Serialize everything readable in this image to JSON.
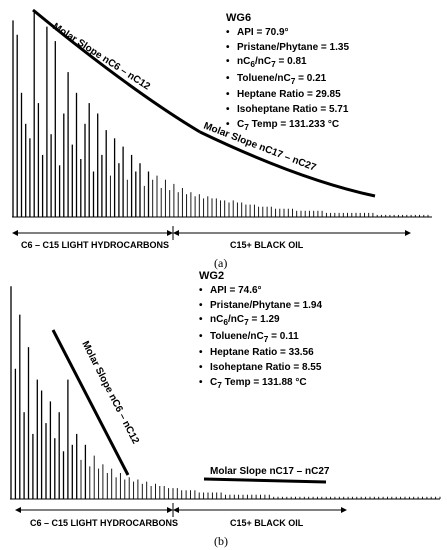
{
  "panels": [
    {
      "id": "a",
      "caption": "(a)",
      "well": "WG6",
      "params": [
        {
          "label": "API = 70.9°"
        },
        {
          "label": "Pristane/Phytane = 1.35"
        },
        {
          "label": "nC",
          "sub": "6",
          "mid": "/nC",
          "sub2": "7",
          "tail": " = 0.81"
        },
        {
          "label": "Toluene/nC",
          "sub": "7",
          "tail": " = 0.21"
        },
        {
          "label": "Heptane Ratio = 29.85"
        },
        {
          "label": "Isoheptane Ratio = 5.71"
        },
        {
          "label": "C",
          "sub": "7",
          "tail": " Temp = 131.233 °C"
        }
      ],
      "slope_labels": [
        "Molar Slope nC6 – nC12",
        "Molar Slope nC17 – nC27"
      ],
      "range_labels": [
        "C6 – C15 LIGHT HYDROCARBONS",
        "C15+ BLACK OIL"
      ]
    },
    {
      "id": "b",
      "caption": "(b)",
      "well": "WG2",
      "params": [
        {
          "label": "API = 74.6°"
        },
        {
          "label": "Pristane/Phytane = 1.94"
        },
        {
          "label": "nC",
          "sub": "6",
          "mid": "/nC",
          "sub2": "7",
          "tail": " = 1.29"
        },
        {
          "label": "Toluene/nC",
          "sub": "7",
          "tail": " = 0.11"
        },
        {
          "label": "Heptane Ratio = 33.56"
        },
        {
          "label": "Isoheptane Ratio = 8.55"
        },
        {
          "label": "C",
          "sub": "7",
          "tail": " Temp = 131.88 °C"
        }
      ],
      "slope_labels": [
        "Molar Slope nC6 – nC12",
        "Molar Slope nC17 – nC27"
      ],
      "range_labels": [
        "C6 – C15 LIGHT HYDROCARBONS",
        "C15+ BLACK OIL"
      ]
    }
  ],
  "chart_data": [
    {
      "type": "bar",
      "panel": "a",
      "title": "",
      "xlabel": "",
      "ylabel": "",
      "note": "Gas chromatogram of whole oil, relative peak heights (0–100).",
      "x": [
        2,
        3,
        4,
        5,
        6,
        7,
        8,
        9,
        10,
        11,
        12,
        13,
        14,
        15,
        16,
        17,
        18,
        19,
        20,
        21,
        22,
        23,
        24,
        25,
        26,
        27,
        28,
        29,
        30,
        31,
        32,
        33,
        34,
        35,
        36,
        37,
        38,
        39,
        40,
        41,
        42,
        43,
        44,
        45,
        46,
        47,
        48,
        49,
        50,
        51,
        52,
        53,
        54,
        55,
        56,
        57,
        58,
        59,
        60,
        61,
        62,
        63,
        64,
        65,
        66,
        67,
        68,
        69,
        70,
        71,
        72,
        73,
        74,
        75,
        76,
        77,
        78,
        79,
        80,
        81,
        82,
        83,
        84,
        85,
        86,
        87,
        88,
        89,
        90,
        91,
        92,
        93,
        94,
        95,
        96,
        97,
        98,
        99,
        100
      ],
      "values": [
        95,
        88,
        60,
        45,
        38,
        99,
        55,
        30,
        92,
        40,
        85,
        25,
        50,
        70,
        35,
        60,
        28,
        45,
        55,
        22,
        50,
        30,
        42,
        20,
        38,
        26,
        34,
        18,
        30,
        22,
        26,
        15,
        22,
        18,
        20,
        14,
        18,
        13,
        16,
        12,
        14,
        11,
        12,
        10,
        11,
        9,
        10,
        9,
        9,
        8,
        8,
        7,
        8,
        7,
        7,
        6,
        6,
        6,
        5,
        5,
        5,
        5,
        4,
        4,
        4,
        4,
        4,
        3,
        3,
        3,
        3,
        3,
        3,
        3,
        2,
        2,
        2,
        2,
        2,
        2,
        2,
        2,
        2,
        2,
        2,
        2,
        1,
        1,
        1,
        1,
        1,
        1,
        1,
        1,
        1,
        1,
        1,
        1,
        1
      ],
      "ylim": [
        0,
        100
      ]
    },
    {
      "type": "bar",
      "panel": "b",
      "title": "",
      "xlabel": "",
      "ylabel": "",
      "note": "Gas chromatogram of whole oil, relative peak heights (0–100).",
      "x": [
        2,
        3,
        4,
        5,
        6,
        7,
        8,
        9,
        10,
        11,
        12,
        13,
        14,
        15,
        16,
        17,
        18,
        19,
        20,
        21,
        22,
        23,
        24,
        25,
        26,
        27,
        28,
        29,
        30,
        31,
        32,
        33,
        34,
        35,
        36,
        37,
        38,
        39,
        40,
        41,
        42,
        43,
        44,
        45,
        46,
        47,
        48,
        49,
        50,
        51,
        52,
        53,
        54,
        55,
        56,
        57,
        58,
        59,
        60,
        61,
        62,
        63,
        64,
        65,
        66,
        67,
        68,
        69,
        70,
        71,
        72,
        73,
        74,
        75,
        76,
        77,
        78,
        79,
        80,
        81,
        82,
        83,
        84,
        85,
        86,
        87,
        88,
        89,
        90,
        91,
        92,
        93,
        94,
        95,
        96,
        97,
        98,
        99,
        100
      ],
      "values": [
        98,
        60,
        85,
        40,
        70,
        30,
        55,
        50,
        35,
        45,
        28,
        40,
        22,
        55,
        25,
        30,
        18,
        25,
        15,
        20,
        14,
        16,
        12,
        14,
        10,
        12,
        9,
        10,
        8,
        9,
        7,
        8,
        6,
        7,
        6,
        6,
        5,
        5,
        5,
        4,
        4,
        4,
        4,
        3,
        3,
        3,
        3,
        3,
        3,
        2,
        2,
        2,
        2,
        2,
        2,
        2,
        2,
        2,
        2,
        2,
        1,
        1,
        1,
        1,
        1,
        1,
        1,
        1,
        1,
        1,
        1,
        1,
        1,
        1,
        1,
        1,
        1,
        1,
        1,
        1,
        1,
        1,
        1,
        1,
        1,
        1,
        1,
        1,
        1,
        1,
        1,
        1,
        1,
        1,
        1,
        1,
        1,
        1,
        1
      ],
      "ylim": [
        0,
        100
      ]
    }
  ]
}
